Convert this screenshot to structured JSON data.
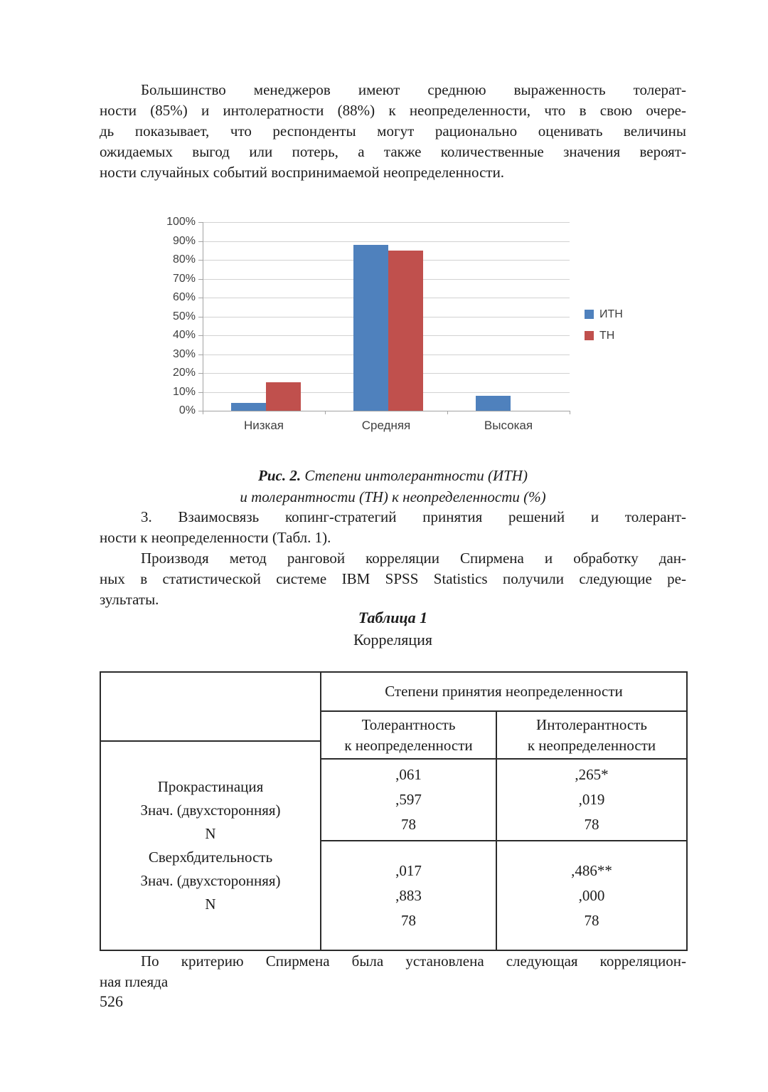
{
  "page_number": "526",
  "paragraphs": {
    "p1": {
      "lines": [
        "Большинство менеджеров имеют среднюю выраженность толерат-",
        "ности (85%) и интолератности (88%) к неопределенности, что в свою очере-",
        "дь показывает, что респонденты могут рационально оценивать величины",
        "ожидаемых выгод или потерь, а также количественные значения вероят-",
        "ности случайных событий воспринимаемой неопределенности."
      ]
    },
    "p2": {
      "lines": [
        "3. Взаимосвязь копинг-стратегий принятия решений и толерант-",
        "ности к неопределенности (Табл. 1)."
      ]
    },
    "p3": {
      "lines": [
        "Производя метод ранговой корреляции Спирмена и обработку дан-",
        "ных в статистической системе IBM SPSS Statistics получили следующие ре-",
        "зультаты."
      ]
    },
    "p4": {
      "lines": [
        "По критерию Спирмена была установлена следующая корреляцион-",
        "ная плеяда"
      ]
    }
  },
  "caption": {
    "label": "Рис. 2.",
    "line1_rest": "Степени интолерантности (ИТН)",
    "line2": "и толерантности (ТН) к неопределенности (%)"
  },
  "table": {
    "title_label": "Таблица 1",
    "title": "Корреляция",
    "span_header": "Степени принятия неопределенности",
    "col_tol": {
      "line1": "Толерантность",
      "line2": "к неопределенности"
    },
    "col_intol": {
      "line1": "Интолерантность",
      "line2": "к неопределенности"
    },
    "row_labels": [
      "Прокрастинация",
      "Знач. (двухсторонняя)",
      "N",
      "Сверхбдительность",
      "Знач. (двухсторонняя)",
      "N"
    ],
    "cells": {
      "r1_tol": [
        ",061",
        ",597",
        "78"
      ],
      "r1_intol": [
        ",265*",
        ",019",
        "78"
      ],
      "r2_tol": [
        ",017",
        ",883",
        "78"
      ],
      "r2_intol": [
        ",486**",
        ",000",
        "78"
      ]
    }
  },
  "chart_data": {
    "type": "bar",
    "title": "",
    "categories": [
      "Низкая",
      "Средняя",
      "Высокая"
    ],
    "series": [
      {
        "name": "ИТН",
        "color": "#4F81BD",
        "values": [
          4,
          88,
          8
        ]
      },
      {
        "name": "ТН",
        "color": "#C0504D",
        "values": [
          15,
          85,
          0
        ]
      }
    ],
    "y_ticks": [
      "0%",
      "10%",
      "20%",
      "30%",
      "40%",
      "50%",
      "60%",
      "70%",
      "80%",
      "90%",
      "100%"
    ],
    "ylim": [
      0,
      100
    ],
    "xlabel": "",
    "ylabel": "",
    "grid": true,
    "legend_position": "right",
    "axis_color": "#a3a3a3",
    "gridline_color": "#d2d2d2"
  }
}
